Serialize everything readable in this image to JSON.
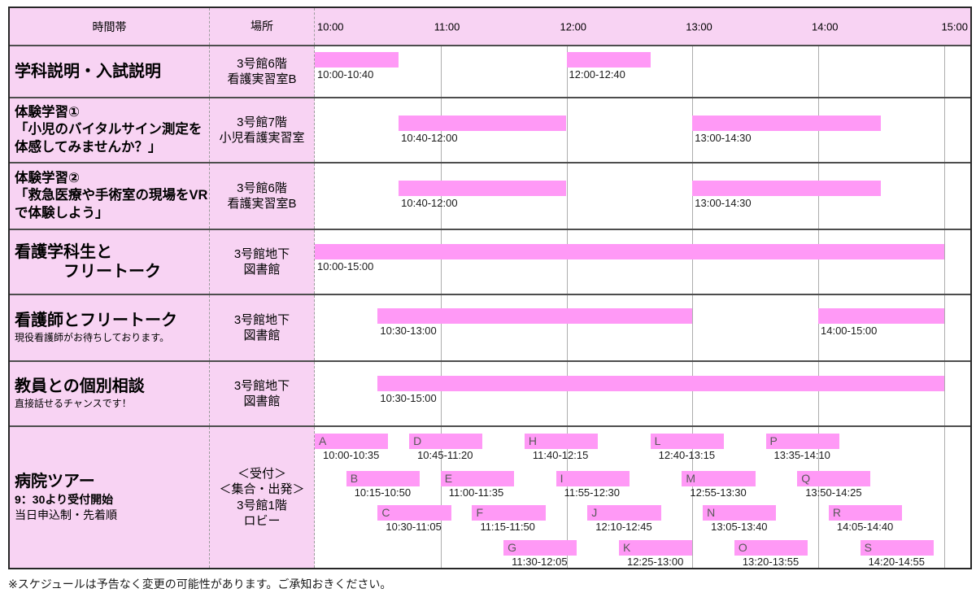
{
  "colors": {
    "cell_pink": "#f8d3f3",
    "bar_pink": "#ff99f6"
  },
  "header": {
    "time_col": "時間帯",
    "place_col": "場所",
    "ticks": [
      "10:00",
      "11:00",
      "12:00",
      "13:00",
      "14:00",
      "15:00"
    ]
  },
  "rows": [
    {
      "title": [
        {
          "text": "学科説明・入試説明",
          "style": "title-lg"
        }
      ],
      "place": [
        "3号館6階",
        "看護実習室B"
      ],
      "bars": [
        {
          "start": "10:00",
          "end": "10:40",
          "label": "10:00-10:40"
        },
        {
          "start": "12:00",
          "end": "12:40",
          "label": "12:00-12:40"
        }
      ]
    },
    {
      "title": [
        {
          "text": "体験学習①",
          "style": "title-md"
        },
        {
          "text": "「小児のバイタルサイン測定を",
          "style": "title-md"
        },
        {
          "text": "体感してみませんか？」",
          "style": "title-md"
        }
      ],
      "place": [
        "3号館7階",
        "小児看護実習室"
      ],
      "bars": [
        {
          "start": "10:40",
          "end": "12:00",
          "label": "10:40-12:00"
        },
        {
          "start": "13:00",
          "end": "14:30",
          "label": "13:00-14:30"
        }
      ]
    },
    {
      "title": [
        {
          "text": "体験学習②",
          "style": "title-md"
        },
        {
          "text": "「救急医療や手術室の現場をVR",
          "style": "title-md"
        },
        {
          "text": "で体験しよう」",
          "style": "title-md"
        }
      ],
      "place": [
        "3号館6階",
        "看護実習室B"
      ],
      "bars": [
        {
          "start": "10:40",
          "end": "12:00",
          "label": "10:40-12:00"
        },
        {
          "start": "13:00",
          "end": "14:30",
          "label": "13:00-14:30"
        }
      ]
    },
    {
      "title": [
        {
          "text": "看護学科生と",
          "style": "title-lg"
        },
        {
          "text": "　　　フリートーク",
          "style": "title-lg"
        }
      ],
      "place": [
        "3号館地下",
        "図書館"
      ],
      "bars": [
        {
          "start": "10:00",
          "end": "15:00",
          "label": "10:00-15:00"
        }
      ]
    },
    {
      "title": [
        {
          "text": "看護師とフリートーク",
          "style": "title-lg"
        },
        {
          "text": "現役看護師がお待ちしております。",
          "style": "note"
        }
      ],
      "place": [
        "3号館地下",
        "図書館"
      ],
      "bars": [
        {
          "start": "10:30",
          "end": "13:00",
          "label": "10:30-13:00"
        },
        {
          "start": "14:00",
          "end": "15:00",
          "label": "14:00-15:00"
        }
      ]
    },
    {
      "title": [
        {
          "text": "教員との個別相談",
          "style": "title-lg"
        },
        {
          "text": "直接話せるチャンスです！",
          "style": "note"
        }
      ],
      "place": [
        "3号館地下",
        "図書館"
      ],
      "bars": [
        {
          "start": "10:30",
          "end": "15:00",
          "label": "10:30-15:00"
        }
      ]
    },
    {
      "title": [
        {
          "text": "病院ツアー",
          "style": "title-lg"
        },
        {
          "text": "9：30より受付開始",
          "style": "sub-bold"
        },
        {
          "text": "当日申込制・先着順",
          "style": "sub"
        }
      ],
      "place": [
        "＜受付＞",
        "＜集合・出発＞",
        "3号館1階",
        "ロビー"
      ],
      "tours": [
        {
          "name": "A",
          "start": "10:00",
          "end": "10:35",
          "label": "10:00-10:35",
          "line": 0
        },
        {
          "name": "B",
          "start": "10:15",
          "end": "10:50",
          "label": "10:15-10:50",
          "line": 1
        },
        {
          "name": "C",
          "start": "10:30",
          "end": "11:05",
          "label": "10:30-11:05",
          "line": 2
        },
        {
          "name": "D",
          "start": "10:45",
          "end": "11:20",
          "label": "10:45-11:20",
          "line": 0
        },
        {
          "name": "E",
          "start": "11:00",
          "end": "11:35",
          "label": "11:00-11:35",
          "line": 1
        },
        {
          "name": "F",
          "start": "11:15",
          "end": "11:50",
          "label": "11:15-11:50",
          "line": 2
        },
        {
          "name": "G",
          "start": "11:30",
          "end": "12:05",
          "label": "11:30-12:05",
          "line": 3
        },
        {
          "name": "H",
          "start": "11:40",
          "end": "12:15",
          "label": "11:40-12:15",
          "line": 0
        },
        {
          "name": "I",
          "start": "11:55",
          "end": "12:30",
          "label": "11:55-12:30",
          "line": 1
        },
        {
          "name": "J",
          "start": "12:10",
          "end": "12:45",
          "label": "12:10-12:45",
          "line": 2
        },
        {
          "name": "K",
          "start": "12:25",
          "end": "13:00",
          "label": "12:25-13:00",
          "line": 3
        },
        {
          "name": "L",
          "start": "12:40",
          "end": "13:15",
          "label": "12:40-13:15",
          "line": 0
        },
        {
          "name": "M",
          "start": "12:55",
          "end": "13:30",
          "label": "12:55-13:30",
          "line": 1
        },
        {
          "name": "N",
          "start": "13:05",
          "end": "13:40",
          "label": "13:05-13:40",
          "line": 2
        },
        {
          "name": "O",
          "start": "13:20",
          "end": "13:55",
          "label": "13:20-13:55",
          "line": 3
        },
        {
          "name": "P",
          "start": "13:35",
          "end": "14:10",
          "label": "13:35-14:10",
          "line": 0
        },
        {
          "name": "Q",
          "start": "13:50",
          "end": "14:25",
          "label": "13:50-14:25",
          "line": 1
        },
        {
          "name": "R",
          "start": "14:05",
          "end": "14:40",
          "label": "14:05-14:40",
          "line": 2
        },
        {
          "name": "S",
          "start": "14:20",
          "end": "14:55",
          "label": "14:20-14:55",
          "line": 3
        }
      ]
    }
  ],
  "footnote": "※スケジュールは予告なく変更の可能性があります。ご承知おきください。"
}
